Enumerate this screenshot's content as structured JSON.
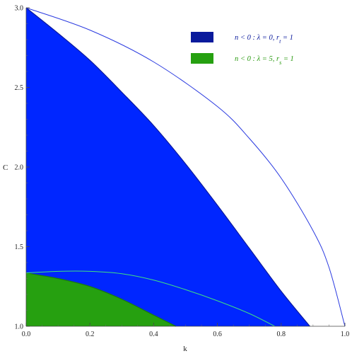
{
  "chart_data": {
    "type": "area",
    "xlabel": "k",
    "ylabel": "C",
    "xlim": [
      0.0,
      1.0
    ],
    "ylim": [
      1.0,
      3.0
    ],
    "x_ticks": [
      "0.0",
      "0.2",
      "0.4",
      "0.6",
      "0.8",
      "1.0"
    ],
    "y_ticks": [
      "1.0",
      "1.5",
      "2.0",
      "2.5",
      "3.0"
    ],
    "grid": false,
    "legend_position": "top-right",
    "series": [
      {
        "name": "n < 0: λ = 0, r_t = 1",
        "kind": "filled-region",
        "color": "#0a1a9c",
        "fill": "#0026ff",
        "points": [
          [
            0.0,
            3.0
          ],
          [
            0.1,
            2.84
          ],
          [
            0.2,
            2.67
          ],
          [
            0.3,
            2.47
          ],
          [
            0.4,
            2.26
          ],
          [
            0.5,
            2.02
          ],
          [
            0.6,
            1.76
          ],
          [
            0.7,
            1.49
          ],
          [
            0.8,
            1.22
          ],
          [
            0.89,
            1.0
          ]
        ]
      },
      {
        "name": "",
        "kind": "curve",
        "color": "#2a3ae0",
        "points": [
          [
            0.0,
            3.0
          ],
          [
            0.2,
            2.86
          ],
          [
            0.4,
            2.66
          ],
          [
            0.6,
            2.38
          ],
          [
            0.7,
            2.18
          ],
          [
            0.8,
            1.93
          ],
          [
            0.9,
            1.6
          ],
          [
            0.95,
            1.37
          ],
          [
            1.0,
            1.0
          ]
        ]
      },
      {
        "name": "n < 0: λ = 5, r_s = 1",
        "kind": "filled-region",
        "color": "#1a7a10",
        "fill": "#26a010",
        "points": [
          [
            0.0,
            1.335
          ],
          [
            0.1,
            1.3
          ],
          [
            0.2,
            1.25
          ],
          [
            0.3,
            1.17
          ],
          [
            0.4,
            1.07
          ],
          [
            0.47,
            1.0
          ]
        ]
      },
      {
        "name": "",
        "kind": "curve",
        "color": "#40e080",
        "points": [
          [
            0.0,
            1.335
          ],
          [
            0.1,
            1.345
          ],
          [
            0.2,
            1.345
          ],
          [
            0.3,
            1.33
          ],
          [
            0.4,
            1.29
          ],
          [
            0.5,
            1.23
          ],
          [
            0.6,
            1.16
          ],
          [
            0.7,
            1.08
          ],
          [
            0.78,
            1.0
          ]
        ]
      }
    ],
    "legend": [
      {
        "label": "n < 0 : λ = 0, r",
        "subscript": "t",
        "tail": " = 1",
        "swatch": "#0a1a9c",
        "text_color": "#0a1a9c"
      },
      {
        "label": "n < 0 : λ = 5, r",
        "subscript": "s",
        "tail": " = 1",
        "swatch": "#26a010",
        "text_color": "#2a9a10"
      }
    ]
  }
}
